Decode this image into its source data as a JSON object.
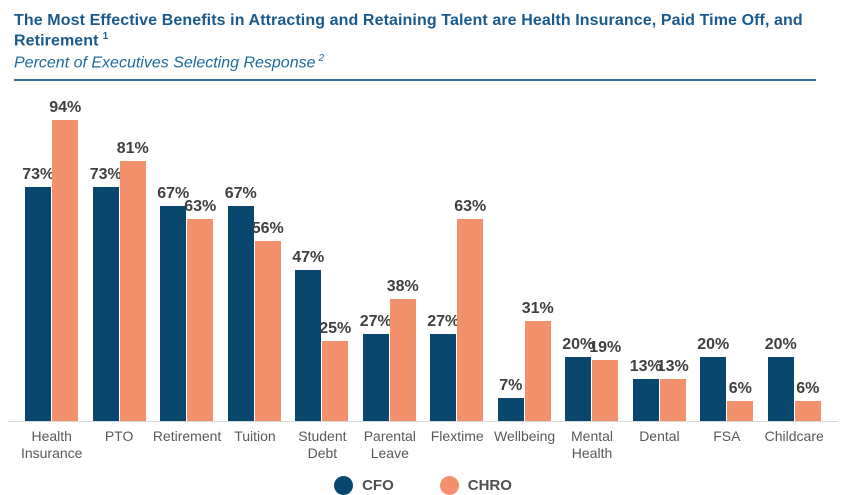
{
  "header": {
    "title": "The Most Effective Benefits in Attracting and Retaining Talent are Health Insurance, Paid Time Off, and Retirement",
    "title_superscript": "1",
    "subtitle": "Percent of Executives Selecting Response",
    "subtitle_superscript": "2"
  },
  "chart_data": {
    "type": "bar",
    "title": "The Most Effective Benefits in Attracting and Retaining Talent are Health Insurance, Paid Time Off, and Retirement",
    "subtitle": "Percent of Executives Selecting Response",
    "categories": [
      "Health Insurance",
      "PTO",
      "Retirement",
      "Tuition",
      "Student Debt",
      "Parental Leave",
      "Flextime",
      "Wellbeing",
      "Mental Health",
      "Dental",
      "FSA",
      "Childcare"
    ],
    "series": [
      {
        "name": "CFO",
        "color": "#09476f",
        "values": [
          73,
          73,
          67,
          67,
          47,
          27,
          27,
          7,
          20,
          13,
          20,
          20
        ]
      },
      {
        "name": "CHRO",
        "color": "#f3916c",
        "values": [
          94,
          81,
          63,
          56,
          25,
          38,
          63,
          31,
          19,
          13,
          6,
          6
        ]
      }
    ],
    "value_suffix": "%",
    "ylim": [
      0,
      100
    ],
    "grid": false,
    "axis_visible": "x-baseline-only",
    "legend_position": "bottom"
  },
  "colors": {
    "title_text": "#1a5a8c",
    "subtitle_text": "#1f6b9e",
    "divider": "#2e6da4",
    "value_label": "#3f4042",
    "category_label": "#59595b",
    "baseline": "#d8d8d8"
  }
}
